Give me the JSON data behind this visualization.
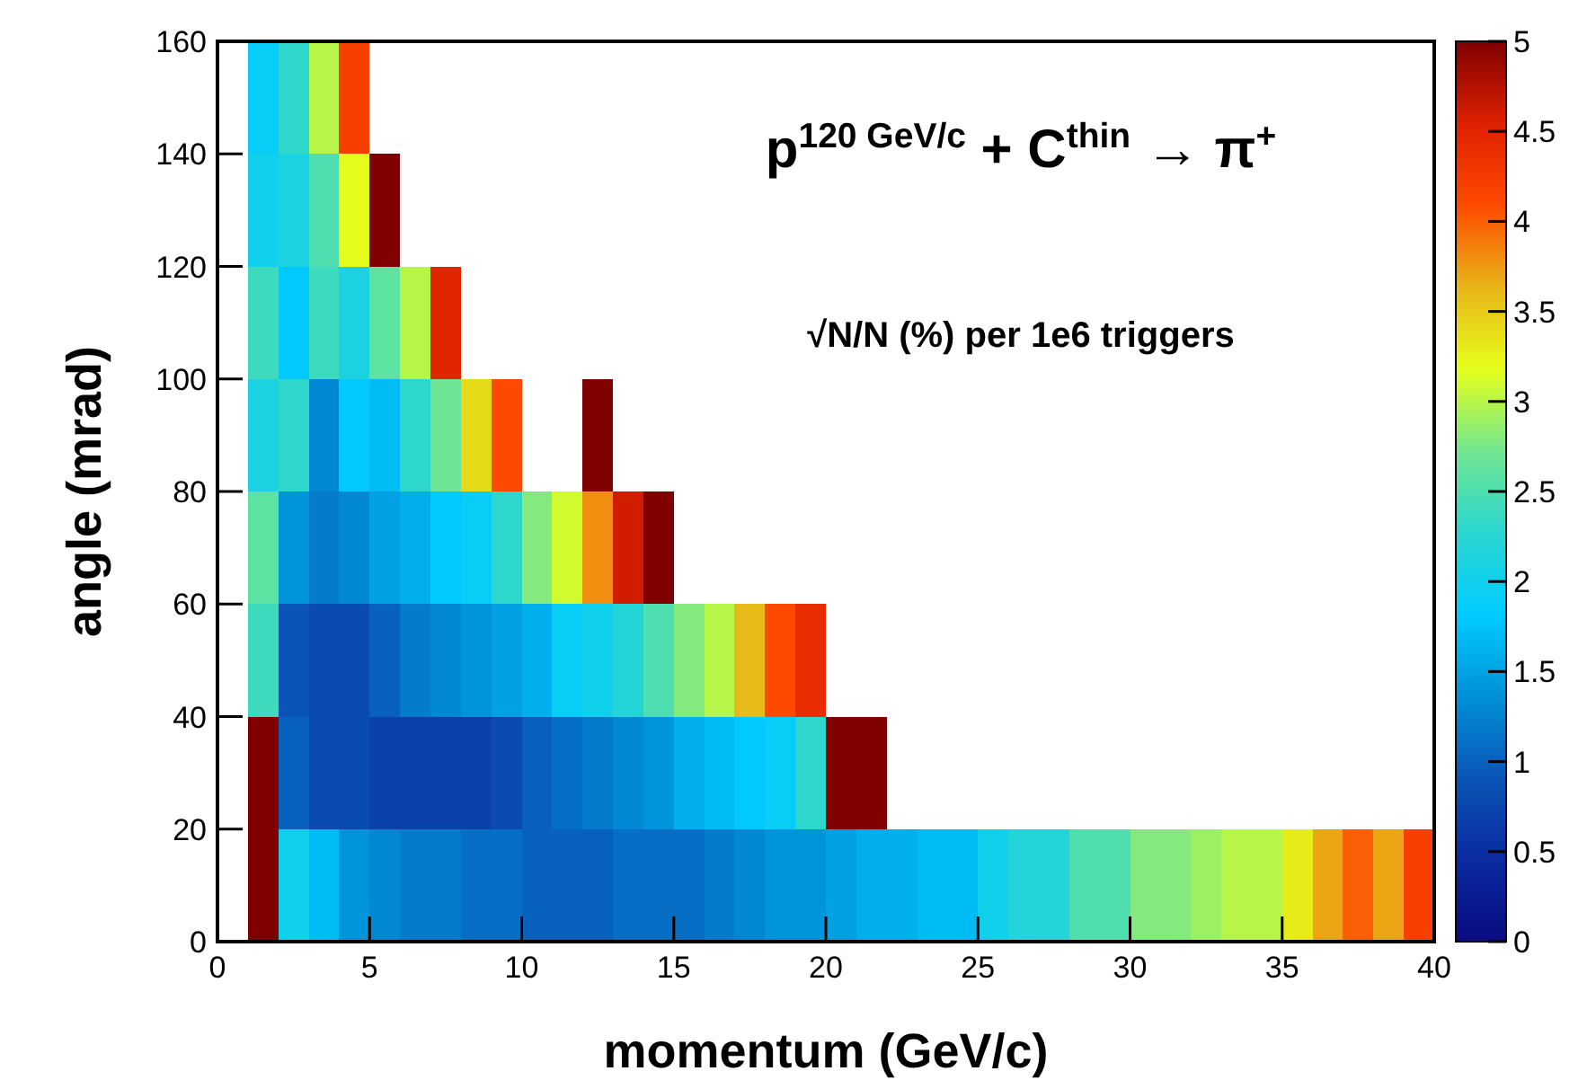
{
  "chart_data": {
    "type": "heatmap",
    "xlabel": "momentum (GeV/c)",
    "ylabel": "angle (mrad)",
    "annotations": [
      "p$^{120 GeV/c}$ + C$^{thin}$ → π$^{+}$",
      "√N/N (%) per 1e6 triggers"
    ],
    "x": [
      0.5,
      1.5,
      2.5,
      3.5,
      4.5,
      5.5,
      6.5,
      7.5,
      8.5,
      9.5,
      10.5,
      11.5,
      12.5,
      13.5,
      14.5,
      15.5,
      16.5,
      17.5,
      18.5,
      19.5,
      20.5,
      21.5,
      22.5,
      23.5,
      24.5,
      25.5,
      26.5,
      27.5,
      28.5,
      29.5,
      30.5,
      31.5,
      32.5,
      33.5,
      34.5,
      35.5,
      36.5,
      37.5,
      38.5,
      39.5
    ],
    "y": [
      150,
      130,
      110,
      90,
      70,
      50,
      30,
      10
    ],
    "xlim": [
      0,
      40
    ],
    "xticks": [
      0,
      5,
      10,
      15,
      20,
      25,
      30,
      35,
      40
    ],
    "ylim": [
      0,
      160
    ],
    "yticks": [
      0,
      20,
      40,
      60,
      80,
      100,
      120,
      140,
      160
    ],
    "clim": [
      0,
      5
    ],
    "cticks": [
      0,
      0.5,
      1,
      1.5,
      2,
      2.5,
      3,
      3.5,
      4,
      4.5,
      5
    ],
    "cells": [
      [
        null,
        1.9,
        2.3,
        3.0,
        4.2,
        null,
        null,
        null,
        null,
        null,
        null,
        null,
        null,
        null,
        null,
        null,
        null,
        null,
        null,
        null,
        null,
        null,
        null,
        null,
        null,
        null,
        null,
        null,
        null,
        null,
        null,
        null,
        null,
        null,
        null,
        null,
        null,
        null,
        null,
        null
      ],
      [
        null,
        2.0,
        2.1,
        2.5,
        3.2,
        5.0,
        null,
        null,
        null,
        null,
        null,
        null,
        null,
        null,
        null,
        null,
        null,
        null,
        null,
        null,
        null,
        null,
        null,
        null,
        null,
        null,
        null,
        null,
        null,
        null,
        null,
        null,
        null,
        null,
        null,
        null,
        null,
        null,
        null,
        null
      ],
      [
        null,
        2.4,
        1.8,
        2.4,
        2.1,
        2.6,
        3.0,
        4.5,
        null,
        null,
        null,
        null,
        null,
        null,
        null,
        null,
        null,
        null,
        null,
        null,
        null,
        null,
        null,
        null,
        null,
        null,
        null,
        null,
        null,
        null,
        null,
        null,
        null,
        null,
        null,
        null,
        null,
        null,
        null,
        null
      ],
      [
        null,
        2.1,
        2.3,
        1.3,
        1.8,
        1.7,
        2.3,
        2.7,
        3.4,
        4.1,
        null,
        null,
        5.0,
        null,
        null,
        null,
        null,
        null,
        null,
        null,
        null,
        null,
        null,
        null,
        null,
        null,
        null,
        null,
        null,
        null,
        null,
        null,
        null,
        null,
        null,
        null,
        null,
        null,
        null,
        null
      ],
      [
        null,
        2.6,
        1.4,
        1.2,
        1.3,
        1.5,
        1.6,
        1.8,
        1.9,
        2.3,
        2.8,
        3.1,
        3.8,
        4.6,
        5.0,
        null,
        null,
        null,
        null,
        null,
        null,
        null,
        null,
        null,
        null,
        null,
        null,
        null,
        null,
        null,
        null,
        null,
        null,
        null,
        null,
        null,
        null,
        null,
        null,
        null
      ],
      [
        null,
        2.4,
        0.9,
        0.8,
        0.8,
        1.0,
        1.2,
        1.3,
        1.4,
        1.5,
        1.6,
        1.9,
        2.0,
        2.2,
        2.5,
        2.8,
        3.0,
        3.6,
        4.1,
        4.4,
        null,
        null,
        null,
        null,
        null,
        null,
        null,
        null,
        null,
        null,
        null,
        null,
        null,
        null,
        null,
        null,
        null,
        null,
        null,
        null
      ],
      [
        null,
        5.0,
        1.0,
        0.8,
        0.8,
        0.7,
        0.7,
        0.7,
        0.7,
        0.8,
        1.0,
        1.1,
        1.2,
        1.3,
        1.4,
        1.6,
        1.7,
        1.8,
        1.9,
        2.3,
        5.0,
        5.0,
        null,
        null,
        null,
        null,
        null,
        null,
        null,
        null,
        null,
        null,
        null,
        null,
        null,
        null,
        null,
        null,
        null,
        null
      ],
      [
        null,
        5.0,
        2.0,
        1.7,
        1.4,
        1.3,
        1.2,
        1.2,
        1.1,
        1.1,
        1.0,
        1.0,
        1.0,
        1.1,
        1.1,
        1.1,
        1.2,
        1.3,
        1.4,
        1.4,
        1.5,
        1.6,
        1.6,
        1.7,
        1.7,
        2.0,
        2.2,
        2.2,
        2.5,
        2.5,
        2.8,
        2.8,
        2.9,
        3.0,
        3.0,
        3.3,
        3.7,
        4.0,
        3.7,
        4.2
      ]
    ]
  }
}
